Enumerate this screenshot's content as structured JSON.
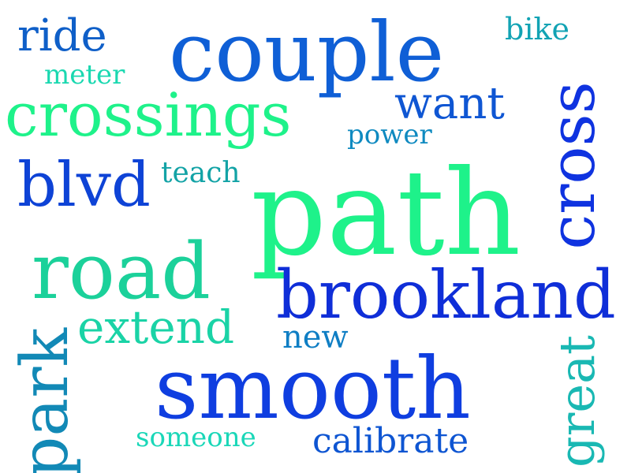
{
  "words": {
    "path": {
      "text": "path",
      "color": "#1ef28a"
    },
    "couple": {
      "text": "couple",
      "color": "#0f5fd6"
    },
    "crossings": {
      "text": "crossings",
      "color": "#1ef28a"
    },
    "road": {
      "text": "road",
      "color": "#1bd19a"
    },
    "smooth": {
      "text": "smooth",
      "color": "#0f3ee0"
    },
    "brookland": {
      "text": "brookland",
      "color": "#0f2ed8"
    },
    "blvd": {
      "text": "blvd",
      "color": "#0e43d6"
    },
    "extend": {
      "text": "extend",
      "color": "#1ad3a6"
    },
    "want": {
      "text": "want",
      "color": "#0f56d3"
    },
    "ride": {
      "text": "ride",
      "color": "#0f5fc8"
    },
    "calibrate": {
      "text": "calibrate",
      "color": "#0e55d2"
    },
    "someone": {
      "text": "someone",
      "color": "#1ad7b8"
    },
    "teach": {
      "text": "teach",
      "color": "#13a3a6"
    },
    "power": {
      "text": "power",
      "color": "#0f8ac0"
    },
    "meter": {
      "text": "meter",
      "color": "#1ad8b0"
    },
    "bike": {
      "text": "bike",
      "color": "#12a3b4"
    },
    "new": {
      "text": "new",
      "color": "#0f7ec4"
    },
    "cross": {
      "text": "cross",
      "color": "#0f33e0"
    },
    "park": {
      "text": "park",
      "color": "#1289b6"
    },
    "great": {
      "text": "great",
      "color": "#19b8b3"
    }
  }
}
